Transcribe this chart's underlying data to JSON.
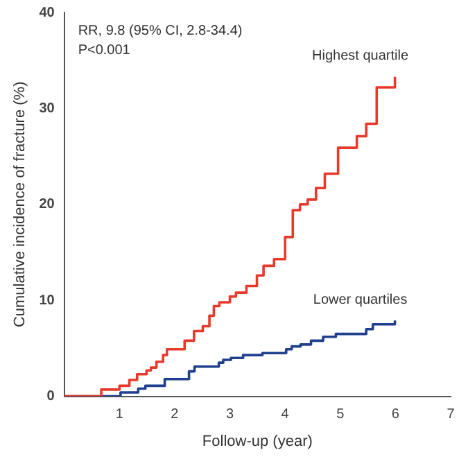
{
  "chart_data": {
    "type": "step",
    "xlabel": "Follow-up (year)",
    "ylabel": "Cumulative incidence of fracture (%)",
    "annotations": [
      "RR, 9.8 (95% CI, 2.8-34.4)",
      "P<0.001"
    ],
    "xlim": [
      0,
      7
    ],
    "xticks": [
      1,
      2,
      3,
      4,
      5,
      6,
      7
    ],
    "ylim": [
      0,
      40
    ],
    "yticks": [
      0,
      10,
      20,
      30,
      40
    ],
    "grid": false,
    "legend": false,
    "marker": "none",
    "line_style": "solid",
    "series": [
      {
        "name": "Highest quartile",
        "color": "#e8392b",
        "x": [
          0,
          0.67,
          1.0,
          1.18,
          1.32,
          1.49,
          1.57,
          1.67,
          1.79,
          1.86,
          2.18,
          2.35,
          2.51,
          2.63,
          2.71,
          2.81,
          3.0,
          3.11,
          3.3,
          3.49,
          3.61,
          3.8,
          4.0,
          4.14,
          4.27,
          4.41,
          4.56,
          4.72,
          4.96,
          5.3,
          5.47,
          5.66,
          5.99
        ],
        "values": [
          0,
          0.7,
          1.1,
          1.7,
          2.3,
          2.7,
          3.0,
          3.6,
          4.3,
          4.9,
          5.8,
          6.8,
          7.3,
          8.4,
          9.4,
          9.8,
          10.4,
          10.8,
          11.5,
          12.6,
          13.6,
          14.3,
          16.6,
          19.4,
          20.0,
          20.5,
          21.7,
          23.2,
          25.9,
          27.1,
          28.4,
          32.2,
          33.3
        ]
      },
      {
        "name": "Lower quartiles",
        "color": "#1f3f8f",
        "x": [
          0,
          1.02,
          1.34,
          1.47,
          1.82,
          2.26,
          2.36,
          2.8,
          2.88,
          3.02,
          3.24,
          3.59,
          4.02,
          4.12,
          4.28,
          4.47,
          4.69,
          4.92,
          5.47,
          5.59,
          5.99
        ],
        "values": [
          0,
          0.4,
          0.8,
          1.1,
          1.8,
          2.6,
          3.1,
          3.5,
          3.8,
          4.0,
          4.3,
          4.5,
          4.9,
          5.2,
          5.4,
          5.8,
          6.2,
          6.5,
          7.0,
          7.5,
          7.9
        ]
      }
    ]
  }
}
